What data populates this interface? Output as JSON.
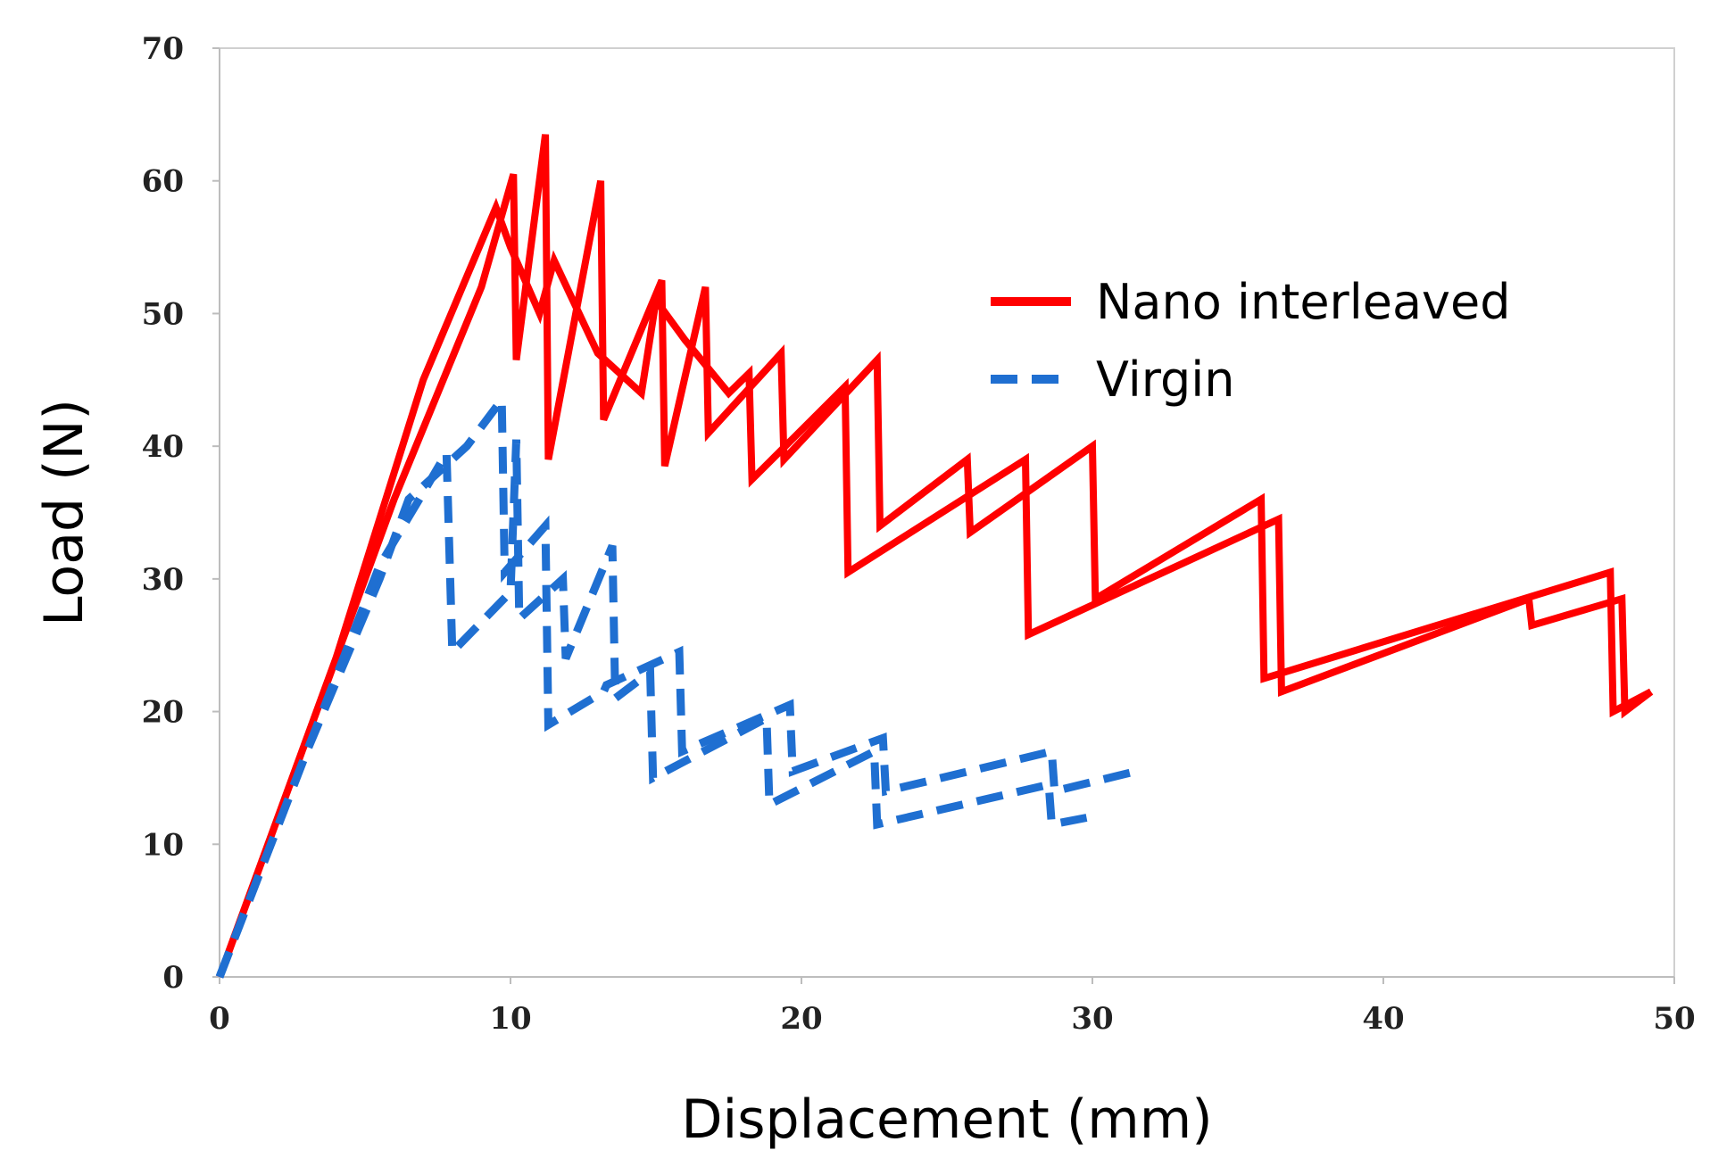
{
  "chart_data": {
    "type": "line",
    "title": "",
    "xlabel": "Displacement (mm)",
    "ylabel": "Load (N)",
    "xlim": [
      0,
      50
    ],
    "ylim": [
      0,
      70
    ],
    "xticks": [
      0,
      10,
      20,
      30,
      40,
      50
    ],
    "yticks": [
      0,
      10,
      20,
      30,
      40,
      50,
      60,
      70
    ],
    "grid": false,
    "legend_position": "upper-right inside plot",
    "series": [
      {
        "name": "Nano interleaved",
        "color": "#ff0000",
        "style": "solid",
        "curves": [
          [
            [
              0,
              0
            ],
            [
              3,
              18
            ],
            [
              6,
              36
            ],
            [
              9,
              52
            ],
            [
              10.1,
              60.5
            ],
            [
              10.2,
              46.5
            ],
            [
              11.2,
              63.5
            ],
            [
              11.3,
              39
            ],
            [
              13.1,
              60
            ],
            [
              13.2,
              42
            ],
            [
              15.2,
              52.5
            ],
            [
              15.3,
              38.5
            ],
            [
              16.7,
              52
            ],
            [
              16.8,
              41
            ],
            [
              19.3,
              47
            ],
            [
              19.4,
              39
            ],
            [
              22.6,
              46.5
            ],
            [
              22.7,
              34
            ],
            [
              25.7,
              39
            ],
            [
              25.8,
              33.5
            ],
            [
              30,
              40
            ],
            [
              30.1,
              28.5
            ],
            [
              35.8,
              36
            ],
            [
              35.9,
              22.5
            ],
            [
              47.8,
              30.5
            ],
            [
              47.9,
              20
            ],
            [
              49.2,
              21.5
            ]
          ],
          [
            [
              0,
              0
            ],
            [
              4,
              24
            ],
            [
              7,
              45
            ],
            [
              9.5,
              58
            ],
            [
              10,
              55
            ],
            [
              11,
              50
            ],
            [
              11.5,
              54
            ],
            [
              13,
              47
            ],
            [
              14.5,
              44
            ],
            [
              15,
              51
            ],
            [
              16,
              48
            ],
            [
              17.5,
              44
            ],
            [
              18.2,
              45.5
            ],
            [
              18.3,
              37.5
            ],
            [
              21.5,
              44.5
            ],
            [
              21.6,
              30.5
            ],
            [
              27.7,
              39
            ],
            [
              27.8,
              25.8
            ],
            [
              36.4,
              34.5
            ],
            [
              36.5,
              21.5
            ],
            [
              45,
              28.5
            ],
            [
              45.1,
              26.5
            ],
            [
              48.2,
              28.5
            ],
            [
              48.3,
              20
            ],
            [
              49.2,
              21.5
            ]
          ]
        ]
      },
      {
        "name": "Virgin",
        "color": "#1f6fd1",
        "style": "dashed",
        "curves": [
          [
            [
              0,
              0
            ],
            [
              3,
              17
            ],
            [
              5.5,
              30
            ],
            [
              6.5,
              36
            ],
            [
              7.5,
              38
            ],
            [
              8.5,
              40
            ],
            [
              9.7,
              43.5
            ],
            [
              9.8,
              30.5
            ],
            [
              11.2,
              34
            ],
            [
              11.3,
              19
            ],
            [
              13.2,
              21.5
            ],
            [
              13.3,
              22
            ],
            [
              15.8,
              24.5
            ],
            [
              15.9,
              17
            ],
            [
              19.6,
              20.5
            ],
            [
              19.7,
              15.5
            ],
            [
              22.8,
              18
            ],
            [
              22.9,
              14
            ],
            [
              28.6,
              17
            ],
            [
              28.7,
              14
            ],
            [
              31.5,
              15.5
            ]
          ],
          [
            [
              0,
              0
            ],
            [
              3,
              17
            ],
            [
              5.5,
              31
            ],
            [
              7,
              36.5
            ],
            [
              7.8,
              39.5
            ],
            [
              8,
              24.5
            ],
            [
              10,
              29
            ],
            [
              10.2,
              40.5
            ],
            [
              10.3,
              27
            ],
            [
              11.8,
              30
            ],
            [
              11.9,
              24
            ],
            [
              13.5,
              32.5
            ],
            [
              13.6,
              21
            ],
            [
              14.8,
              23
            ],
            [
              14.9,
              15
            ],
            [
              18.8,
              19.5
            ],
            [
              18.9,
              13
            ],
            [
              22.5,
              17
            ],
            [
              22.6,
              11.5
            ],
            [
              28.5,
              14.5
            ],
            [
              28.6,
              11.5
            ],
            [
              29.8,
              12
            ]
          ]
        ]
      }
    ]
  }
}
